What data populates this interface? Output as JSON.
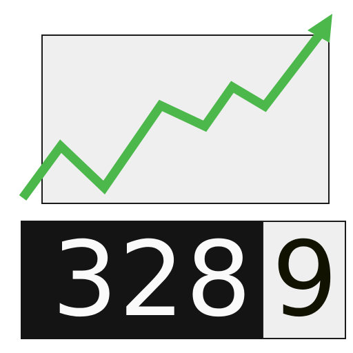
{
  "counter": {
    "digits": [
      "3",
      "2",
      "8",
      "9"
    ],
    "highlighted_index": 3
  },
  "chart": {
    "trend": "up",
    "has_arrowhead": true
  },
  "colors": {
    "trend_line": "#4cb84c",
    "panel_bg": "#efefef",
    "counter_bg": "#141414",
    "border": "#1b1b1b",
    "digit_light": "#fafafa",
    "digit_dark": "#121200"
  },
  "icons": [
    "trend-up-arrow-icon"
  ]
}
